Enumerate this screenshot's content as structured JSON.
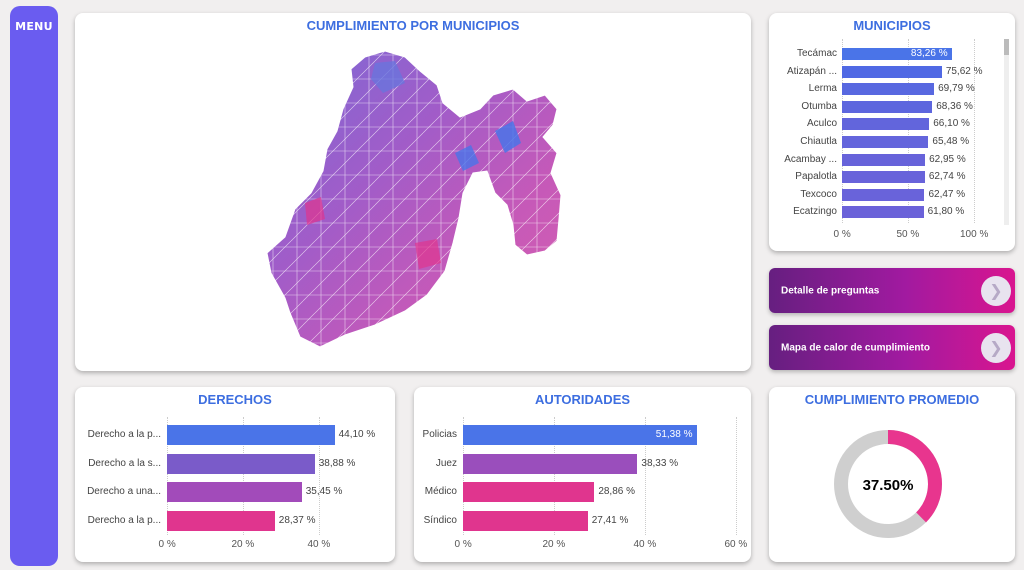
{
  "menu": {
    "label": "MENU"
  },
  "map": {
    "title": "CUMPLIMIENTO POR MUNICIPIOS"
  },
  "municipios": {
    "title": "MUNICIPIOS",
    "ticks": [
      "0 %",
      "50 %",
      "100 %"
    ],
    "items": [
      {
        "label": "Tecámac",
        "value": 83.26,
        "display": "83,26 %",
        "color": "#4a74e8"
      },
      {
        "label": "Atizapán ...",
        "value": 75.62,
        "display": "75,62 %",
        "color": "#5069e4"
      },
      {
        "label": "Lerma",
        "value": 69.79,
        "display": "69,79 %",
        "color": "#5868e0"
      },
      {
        "label": "Otumba",
        "value": 68.36,
        "display": "68,36 %",
        "color": "#5d66de"
      },
      {
        "label": "Aculco",
        "value": 66.1,
        "display": "66,10 %",
        "color": "#6265dc"
      },
      {
        "label": "Chiautla",
        "value": 65.48,
        "display": "65,48 %",
        "color": "#6465dc"
      },
      {
        "label": "Acambay ...",
        "value": 62.95,
        "display": "62,95 %",
        "color": "#6763da"
      },
      {
        "label": "Papalotla",
        "value": 62.74,
        "display": "62,74 %",
        "color": "#6863da"
      },
      {
        "label": "Texcoco",
        "value": 62.47,
        "display": "62,47 %",
        "color": "#6963da"
      },
      {
        "label": "Ecatzingo",
        "value": 61.8,
        "display": "61,80 %",
        "color": "#6b62d9"
      }
    ]
  },
  "buttons": [
    {
      "label": "Detalle de preguntas",
      "arrow": "❯"
    },
    {
      "label": "Mapa de calor de cumplimiento",
      "arrow": "❯"
    }
  ],
  "derechos": {
    "title": "DERECHOS",
    "ticks": [
      "0 %",
      "20 %",
      "40 %"
    ],
    "items": [
      {
        "label": "Derecho a la p...",
        "value": 44.1,
        "display": "44,10 %",
        "color": "#4a74e8"
      },
      {
        "label": "Derecho a la s...",
        "value": 38.88,
        "display": "38,88 %",
        "color": "#7a5bc9"
      },
      {
        "label": "Derecho a una...",
        "value": 35.45,
        "display": "35,45 %",
        "color": "#a24bba"
      },
      {
        "label": "Derecho a la p...",
        "value": 28.37,
        "display": "28,37 %",
        "color": "#e0358e"
      }
    ]
  },
  "autoridades": {
    "title": "AUTORIDADES",
    "ticks": [
      "0 %",
      "20 %",
      "40 %",
      "60 %"
    ],
    "items": [
      {
        "label": "Policias",
        "value": 51.38,
        "display": "51,38 %",
        "color": "#4a74e8"
      },
      {
        "label": "Juez",
        "value": 38.33,
        "display": "38,33 %",
        "color": "#9a4ebc"
      },
      {
        "label": "Médico",
        "value": 28.86,
        "display": "28,86 %",
        "color": "#e0358e"
      },
      {
        "label": "Síndico",
        "value": 27.41,
        "display": "27,41 %",
        "color": "#e0358e"
      }
    ]
  },
  "promedio": {
    "title": "CUMPLIMIENTO PROMEDIO",
    "value": 37.5,
    "display": "37.50%",
    "color": "#e8358e",
    "track": "#cfcfcf"
  }
}
